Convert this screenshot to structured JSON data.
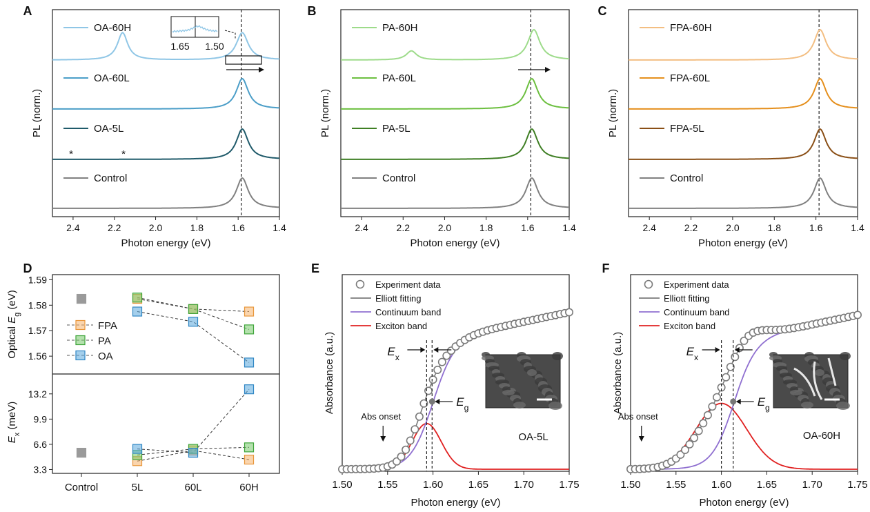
{
  "colors": {
    "OA-60H": "#8fc6e6",
    "OA-60L": "#4b9ec8",
    "OA-5L": "#1f5a6a",
    "PA-60H": "#9ddb8a",
    "PA-60L": "#6cbf3f",
    "PA-5L": "#3f7f24",
    "FPA-60H": "#f3be82",
    "FPA-60L": "#e58f1c",
    "FPA-5L": "#8a4f16",
    "Control": "#808080",
    "FPA": "#f5b26b",
    "PA": "#76c96a",
    "OA": "#5aa8dc",
    "fit": "#7a7a7a",
    "continuum": "#8f6fd0",
    "exciton": "#e02020"
  },
  "chart_data": [
    {
      "panel": "A",
      "type": "line",
      "xlabel": "Photon energy (eV)",
      "ylabel": "PL (norm.)",
      "xlim": [
        2.5,
        1.4
      ],
      "xticks": [
        "2.4",
        "2.2",
        "2.0",
        "1.8",
        "1.6",
        "1.4"
      ],
      "series": [
        {
          "name": "OA-60H",
          "peaks": [
            [
              1.58,
              0.9
            ],
            [
              2.16,
              0.9
            ]
          ]
        },
        {
          "name": "OA-60L",
          "peaks": [
            [
              1.58,
              1.0
            ]
          ]
        },
        {
          "name": "OA-5L",
          "peaks": [
            [
              1.58,
              1.0
            ]
          ]
        },
        {
          "name": "Control",
          "peaks": [
            [
              1.58,
              1.0
            ]
          ]
        }
      ],
      "annotations": {
        "star": "*",
        "inset_ticks": [
          "1.65",
          "1.50"
        ]
      }
    },
    {
      "panel": "B",
      "type": "line",
      "xlabel": "Photon energy (eV)",
      "ylabel": "PL (norm.)",
      "xlim": [
        2.5,
        1.4
      ],
      "xticks": [
        "2.4",
        "2.2",
        "2.0",
        "1.8",
        "1.6",
        "1.4"
      ],
      "series": [
        {
          "name": "PA-60H",
          "peaks": [
            [
              1.57,
              1.0
            ],
            [
              2.16,
              0.3
            ]
          ]
        },
        {
          "name": "PA-60L",
          "peaks": [
            [
              1.58,
              1.0
            ]
          ]
        },
        {
          "name": "PA-5L",
          "peaks": [
            [
              1.58,
              1.0
            ]
          ]
        },
        {
          "name": "Control",
          "peaks": [
            [
              1.58,
              1.0
            ]
          ]
        }
      ]
    },
    {
      "panel": "C",
      "type": "line",
      "xlabel": "Photon energy (eV)",
      "ylabel": "PL (norm.)",
      "xlim": [
        2.5,
        1.4
      ],
      "xticks": [
        "2.4",
        "2.2",
        "2.0",
        "1.8",
        "1.6",
        "1.4"
      ],
      "series": [
        {
          "name": "FPA-60H",
          "peaks": [
            [
              1.58,
              1.0
            ]
          ]
        },
        {
          "name": "FPA-60L",
          "peaks": [
            [
              1.58,
              1.0
            ]
          ]
        },
        {
          "name": "FPA-5L",
          "peaks": [
            [
              1.58,
              1.0
            ]
          ]
        },
        {
          "name": "Control",
          "peaks": [
            [
              1.58,
              1.0
            ]
          ]
        }
      ]
    },
    {
      "panel": "D",
      "type": "scatter",
      "categories": [
        "Control",
        "5L",
        "60L",
        "60H"
      ],
      "top": {
        "ylabel_main": "Optical ",
        "ylabel_sym": "E",
        "ylabel_sub": "g",
        "ylabel_unit": " (eV)",
        "yticks": [
          "1.59",
          "1.58",
          "1.57",
          "1.56"
        ],
        "ylim": [
          1.553,
          1.592
        ],
        "series": [
          {
            "name": "Control",
            "values": [
              1.5825,
              null,
              null,
              null
            ]
          },
          {
            "name": "FPA",
            "values": [
              null,
              1.5825,
              1.5785,
              1.5775
            ]
          },
          {
            "name": "PA",
            "values": [
              null,
              1.583,
              1.5785,
              1.5705
            ]
          },
          {
            "name": "OA",
            "values": [
              null,
              1.5775,
              1.5735,
              1.5575
            ]
          }
        ]
      },
      "bottom": {
        "ylabel_sym": "E",
        "ylabel_sub": "x",
        "ylabel_unit": " (meV)",
        "yticks": [
          "13.2",
          "9.9",
          "6.6",
          "3.3"
        ],
        "ylim": [
          2.8,
          15.8
        ],
        "series": [
          {
            "name": "Control",
            "values": [
              5.5,
              null,
              null,
              null
            ]
          },
          {
            "name": "FPA",
            "values": [
              null,
              4.4,
              5.8,
              4.6
            ]
          },
          {
            "name": "PA",
            "values": [
              null,
              5.2,
              6.0,
              6.2
            ]
          },
          {
            "name": "OA",
            "values": [
              null,
              6.0,
              5.5,
              13.8
            ]
          }
        ]
      },
      "legend": [
        "FPA",
        "PA",
        "OA"
      ]
    },
    {
      "panel": "E",
      "type": "line",
      "xlabel": "Photon energy (eV)",
      "ylabel": "Absorbance (a.u.)",
      "xlim": [
        1.5,
        1.75
      ],
      "xticks": [
        "1.50",
        "1.55",
        "1.60",
        "1.65",
        "1.70",
        "1.75"
      ],
      "legend": [
        "Experiment data",
        "Elliott fitting",
        "Continuum band",
        "Exciton band"
      ],
      "Ex": 1.593,
      "Eg": 1.599,
      "exciton_peak": 0.25,
      "exciton_width": 0.016,
      "onset_x": 1.545,
      "labels": {
        "onset": "Abs onset",
        "sample": "OA-5L",
        "Ex_sym": "E",
        "Ex_sub": "x",
        "Eg_sym": "E",
        "Eg_sub": "g"
      }
    },
    {
      "panel": "F",
      "type": "line",
      "xlabel": "Photon energy (eV)",
      "ylabel": "Absorbance (a.u.)",
      "xlim": [
        1.5,
        1.75
      ],
      "xticks": [
        "1.50",
        "1.55",
        "1.60",
        "1.65",
        "1.70",
        "1.75"
      ],
      "legend": [
        "Experiment data",
        "Elliott fitting",
        "Continuum band",
        "Exciton band"
      ],
      "Ex": 1.6,
      "Eg": 1.613,
      "exciton_peak": 0.36,
      "exciton_width": 0.028,
      "onset_x": 1.512,
      "labels": {
        "onset": "Abs onset",
        "sample": "OA-60H",
        "Ex_sym": "E",
        "Ex_sub": "x",
        "Eg_sym": "E",
        "Eg_sub": "g"
      }
    }
  ]
}
